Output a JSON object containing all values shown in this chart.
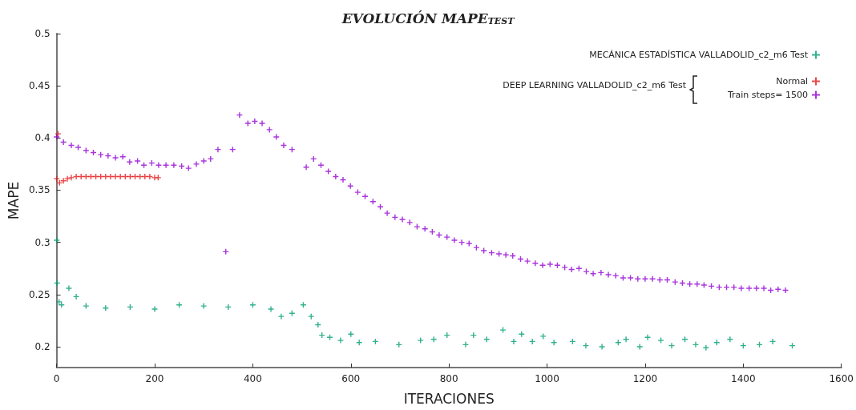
{
  "chart_data": {
    "type": "scatter",
    "title": "EVOLUCIÓN MAPE$_{TEST}$",
    "xlabel": "ITERACIONES",
    "ylabel": "MAPE",
    "annotations": [
      "DEEP LEARNING VALLADOLID_c2_m6 Test"
    ],
    "legend": "top right",
    "marker": "cross",
    "xlim": [
      0,
      1600
    ],
    "ylim": [
      0.18,
      0.5
    ],
    "xticks": [
      0,
      200,
      400,
      600,
      800,
      1000,
      1200,
      1400,
      1600
    ],
    "yticks": [
      0.2,
      0.25,
      0.3,
      0.35,
      0.4,
      0.45,
      0.5
    ],
    "series": [
      {
        "name": "MECÁNICA ESTADÍSTICA VALLADOLID_c2_m6 Test",
        "color": "#009e73",
        "x": [
          0,
          1,
          5,
          10,
          25,
          40,
          60,
          100,
          150,
          200,
          250,
          300,
          350,
          400,
          437,
          458,
          480,
          503,
          519,
          533,
          541,
          557,
          579,
          600,
          617,
          650,
          698,
          742,
          769,
          796,
          834,
          850,
          877,
          910,
          932,
          948,
          970,
          992,
          1014,
          1052,
          1079,
          1112,
          1145,
          1161,
          1189,
          1205,
          1232,
          1254,
          1281,
          1303,
          1324,
          1346,
          1373,
          1400,
          1433,
          1460,
          1500
        ],
        "values": [
          0.302,
          0.261,
          0.243,
          0.24,
          0.256,
          0.248,
          0.239,
          0.237,
          0.238,
          0.236,
          0.24,
          0.239,
          0.238,
          0.24,
          0.236,
          0.229,
          0.232,
          0.24,
          0.229,
          0.221,
          0.211,
          0.209,
          0.206,
          0.212,
          0.204,
          0.205,
          0.202,
          0.206,
          0.207,
          0.211,
          0.202,
          0.211,
          0.207,
          0.216,
          0.205,
          0.212,
          0.205,
          0.21,
          0.204,
          0.205,
          0.201,
          0.2,
          0.204,
          0.207,
          0.2,
          0.209,
          0.206,
          0.201,
          0.207,
          0.202,
          0.199,
          0.204,
          0.207,
          0.201,
          0.202,
          0.205,
          0.201
        ]
      },
      {
        "name": "Normal",
        "color": "#e41a1c",
        "x": [
          0,
          3,
          6,
          14,
          22,
          30,
          40,
          50,
          60,
          70,
          80,
          90,
          100,
          110,
          120,
          130,
          140,
          150,
          160,
          170,
          180,
          190,
          200,
          207
        ],
        "values": [
          0.361,
          0.404,
          0.357,
          0.359,
          0.361,
          0.362,
          0.363,
          0.363,
          0.363,
          0.363,
          0.363,
          0.363,
          0.363,
          0.363,
          0.363,
          0.363,
          0.363,
          0.363,
          0.363,
          0.363,
          0.363,
          0.363,
          0.362,
          0.362
        ]
      },
      {
        "name": "Train steps= 1500",
        "color": "#9400d3",
        "x": [
          0,
          14,
          30,
          44,
          60,
          75,
          90,
          105,
          120,
          135,
          149,
          165,
          178,
          194,
          208,
          223,
          239,
          255,
          269,
          285,
          300,
          314,
          329,
          345,
          359,
          373,
          390,
          404,
          419,
          434,
          448,
          463,
          480,
          509,
          524,
          539,
          554,
          569,
          584,
          599,
          614,
          629,
          645,
          660,
          674,
          690,
          705,
          720,
          735,
          751,
          766,
          780,
          796,
          811,
          826,
          841,
          856,
          871,
          887,
          902,
          916,
          930,
          946,
          960,
          976,
          991,
          1006,
          1021,
          1036,
          1050,
          1065,
          1080,
          1094,
          1110,
          1125,
          1140,
          1155,
          1170,
          1185,
          1200,
          1215,
          1230,
          1245,
          1261,
          1276,
          1291,
          1306,
          1320,
          1335,
          1351,
          1366,
          1381,
          1396,
          1412,
          1427,
          1442,
          1456,
          1471,
          1486
        ],
        "values": [
          0.401,
          0.396,
          0.393,
          0.391,
          0.388,
          0.386,
          0.384,
          0.383,
          0.381,
          0.382,
          0.377,
          0.378,
          0.374,
          0.376,
          0.374,
          0.374,
          0.374,
          0.373,
          0.371,
          0.375,
          0.378,
          0.38,
          0.389,
          0.291,
          0.389,
          0.422,
          0.414,
          0.416,
          0.414,
          0.408,
          0.401,
          0.393,
          0.389,
          0.372,
          0.38,
          0.374,
          0.368,
          0.363,
          0.36,
          0.354,
          0.348,
          0.344,
          0.339,
          0.334,
          0.328,
          0.324,
          0.322,
          0.319,
          0.315,
          0.313,
          0.31,
          0.307,
          0.305,
          0.302,
          0.3,
          0.299,
          0.295,
          0.292,
          0.29,
          0.289,
          0.288,
          0.287,
          0.284,
          0.282,
          0.28,
          0.278,
          0.279,
          0.278,
          0.276,
          0.274,
          0.275,
          0.272,
          0.27,
          0.271,
          0.269,
          0.268,
          0.266,
          0.266,
          0.265,
          0.265,
          0.265,
          0.264,
          0.264,
          0.262,
          0.261,
          0.26,
          0.26,
          0.259,
          0.258,
          0.257,
          0.257,
          0.257,
          0.256,
          0.256,
          0.256,
          0.256,
          0.254,
          0.255,
          0.254
        ]
      }
    ]
  }
}
